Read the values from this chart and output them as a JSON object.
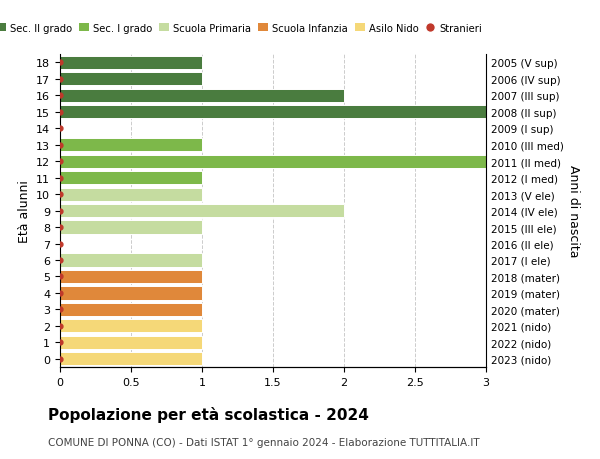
{
  "ages": [
    18,
    17,
    16,
    15,
    14,
    13,
    12,
    11,
    10,
    9,
    8,
    7,
    6,
    5,
    4,
    3,
    2,
    1,
    0
  ],
  "right_labels": [
    "2005 (V sup)",
    "2006 (IV sup)",
    "2007 (III sup)",
    "2008 (II sup)",
    "2009 (I sup)",
    "2010 (III med)",
    "2011 (II med)",
    "2012 (I med)",
    "2013 (V ele)",
    "2014 (IV ele)",
    "2015 (III ele)",
    "2016 (II ele)",
    "2017 (I ele)",
    "2018 (mater)",
    "2019 (mater)",
    "2020 (mater)",
    "2021 (nido)",
    "2022 (nido)",
    "2023 (nido)"
  ],
  "bar_values": [
    1,
    1,
    2,
    3,
    0,
    1,
    3,
    1,
    1,
    2,
    1,
    0,
    1,
    1,
    1,
    1,
    1,
    1,
    1
  ],
  "bar_colors": [
    "#4a7c3f",
    "#4a7c3f",
    "#4a7c3f",
    "#4a7c3f",
    "#4a7c3f",
    "#7db84a",
    "#7db84a",
    "#7db84a",
    "#c5dca0",
    "#c5dca0",
    "#c5dca0",
    "#c5dca0",
    "#c5dca0",
    "#e0883a",
    "#e0883a",
    "#e0883a",
    "#f5d878",
    "#f5d878",
    "#f5d878"
  ],
  "dot_color": "#c0392b",
  "legend_labels": [
    "Sec. II grado",
    "Sec. I grado",
    "Scuola Primaria",
    "Scuola Infanzia",
    "Asilo Nido",
    "Stranieri"
  ],
  "legend_colors": [
    "#4a7c3f",
    "#7db84a",
    "#c5dca0",
    "#e0883a",
    "#f5d878",
    "#c0392b"
  ],
  "ylabel_left": "Età alunni",
  "ylabel_right": "Anni di nascita",
  "title": "Popolazione per età scolastica - 2024",
  "subtitle": "COMUNE DI PONNA (CO) - Dati ISTAT 1° gennaio 2024 - Elaborazione TUTTITALIA.IT",
  "xlim": [
    0,
    3.0
  ],
  "xticks": [
    0,
    0.5,
    1.0,
    1.5,
    2.0,
    2.5,
    3.0
  ],
  "bg_color": "#ffffff",
  "grid_color": "#cccccc",
  "bar_height": 0.8
}
